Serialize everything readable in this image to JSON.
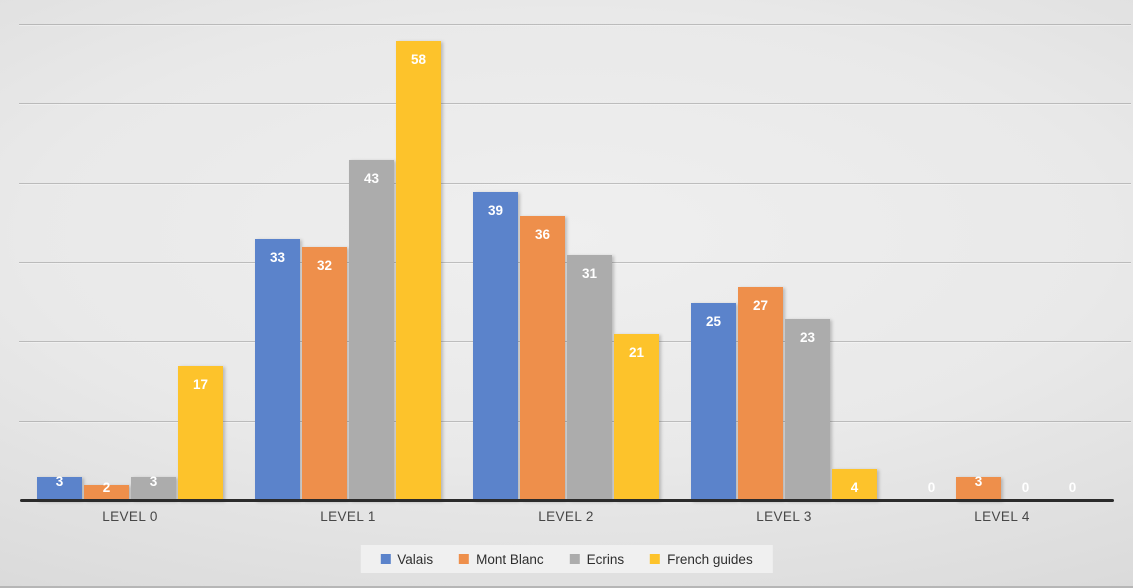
{
  "chart_data": {
    "type": "bar",
    "categories": [
      "LEVEL 0",
      "LEVEL 1",
      "LEVEL 2",
      "LEVEL 3",
      "LEVEL 4"
    ],
    "series": [
      {
        "name": "Valais",
        "color": "#5B83CB",
        "values": [
          3,
          33,
          39,
          25,
          0
        ]
      },
      {
        "name": "Mont Blanc",
        "color": "#EE8F4B",
        "values": [
          2,
          32,
          36,
          27,
          3
        ]
      },
      {
        "name": "Ecrins",
        "color": "#ACACAC",
        "values": [
          3,
          43,
          31,
          23,
          0
        ]
      },
      {
        "name": "French guides",
        "color": "#FDC32B",
        "values": [
          17,
          58,
          21,
          4,
          0
        ]
      }
    ],
    "title": "",
    "xlabel": "",
    "ylabel": "",
    "ylim": [
      0,
      60
    ],
    "gridline_interval": 10,
    "grid": true,
    "y_axis_labels_visible": false,
    "legend_position": "bottom",
    "data_labels": "inside-end"
  },
  "colors": {
    "value_label": "#ffffff",
    "category_label": "#474747",
    "legend_text": "#2e2e2e",
    "axis_line": "#2b2b2b",
    "gridline": "#7d7d7d"
  }
}
